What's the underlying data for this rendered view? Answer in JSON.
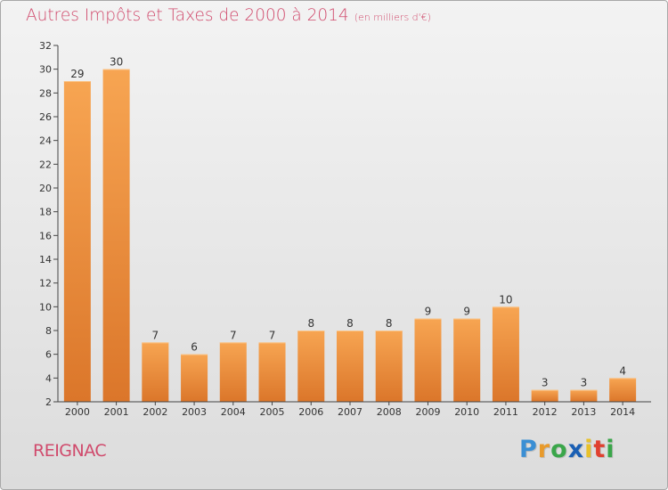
{
  "title": "Autres Impôts et Taxes de 2000 à 2014",
  "unit": "(en milliers d'€)",
  "town": "REIGNAC",
  "logo": {
    "letters": [
      "P",
      "r",
      "o",
      "x",
      "i",
      "t",
      "i"
    ],
    "colors": [
      "#3b8fd4",
      "#e89a2b",
      "#3aa64a",
      "#1a5fb4",
      "#e8c12b",
      "#e0402f",
      "#3aa64a"
    ]
  },
  "colors": {
    "bar": "#f0913a",
    "bar_dark": "#d9752a",
    "axis_text": "#333333",
    "text": "#d04a6c"
  },
  "chart_data": {
    "type": "bar",
    "categories": [
      "2000",
      "2001",
      "2002",
      "2003",
      "2004",
      "2005",
      "2006",
      "2007",
      "2008",
      "2009",
      "2010",
      "2011",
      "2012",
      "2013",
      "2014"
    ],
    "values": [
      29,
      30,
      7,
      6,
      7,
      7,
      8,
      8,
      8,
      9,
      9,
      10,
      3,
      3,
      4
    ],
    "data_labels": [
      "29",
      "30",
      "7",
      "6",
      "7",
      "7",
      "8",
      "8",
      "8",
      "9",
      "9",
      "10",
      "3",
      "3",
      "4"
    ],
    "yticks": [
      "2",
      "4",
      "6",
      "8",
      "10",
      "12",
      "14",
      "16",
      "18",
      "20",
      "22",
      "24",
      "26",
      "28",
      "30",
      "32"
    ],
    "ylim": [
      2,
      32
    ],
    "grid": false
  }
}
